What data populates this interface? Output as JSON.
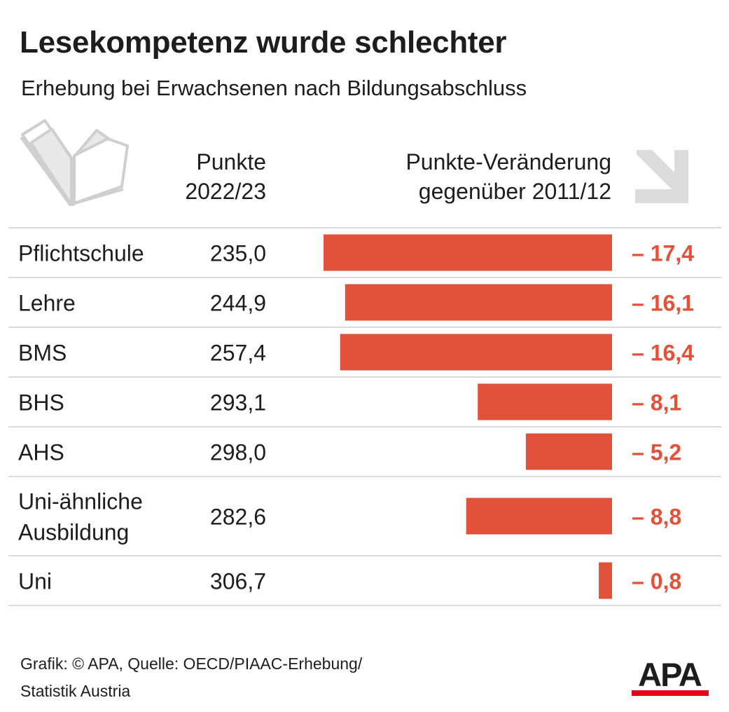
{
  "header": {
    "title": "Lesekompetenz wurde schlechter",
    "subtitle": "Erhebung bei Erwachsenen nach Bildungsabschluss"
  },
  "columns": {
    "points_line1": "Punkte",
    "points_line2": "2022/23",
    "change_line1": "Punkte-Veränderung",
    "change_line2": "gegenüber 2011/12"
  },
  "icons": {
    "book": "open-book-icon",
    "arrow": "down-right-arrow-icon"
  },
  "colors": {
    "bar": "#e2523a",
    "change_text": "#e2523a",
    "divider": "#d9d9d9",
    "icon_gray": "#d8d8d8",
    "logo_red": "#e2001a"
  },
  "chart_data": {
    "type": "bar",
    "categories": [
      "Pflichtschule",
      "Lehre",
      "BMS",
      "BHS",
      "AHS",
      "Uni-ähnliche Ausbildung",
      "Uni"
    ],
    "category_lines": [
      [
        "Pflichtschule"
      ],
      [
        "Lehre"
      ],
      [
        "BMS"
      ],
      [
        "BHS"
      ],
      [
        "AHS"
      ],
      [
        "Uni-ähnliche",
        "Ausbildung"
      ],
      [
        "Uni"
      ]
    ],
    "points_2022_23": [
      235.0,
      244.9,
      257.4,
      293.1,
      298.0,
      282.6,
      306.7
    ],
    "points_labels": [
      "235,0",
      "244,9",
      "257,4",
      "293,1",
      "298,0",
      "282,6",
      "306,7"
    ],
    "series": [
      {
        "values": [
          -17.4,
          -16.1,
          -16.4,
          -8.1,
          -5.2,
          -8.8,
          -0.8
        ]
      }
    ],
    "change_labels": [
      "– 17,4",
      "– 16,1",
      "– 16,4",
      "– 8,1",
      "– 5,2",
      "– 8,8",
      "– 0,8"
    ],
    "xlim": [
      -17.4,
      0
    ],
    "grid": false
  },
  "footer": {
    "line1": "Grafik: © APA, Quelle: OECD/PIAAC-Erhebung/",
    "line2": "Statistik Austria",
    "logo_text": "APA"
  }
}
